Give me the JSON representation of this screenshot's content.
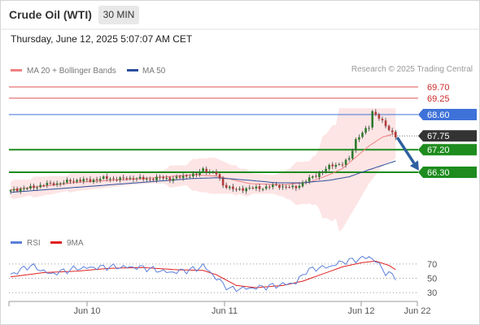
{
  "header": {
    "title": "Crude Oil (WTI)",
    "timeframe": "30 MIN",
    "datetime": "Thursday, June 12, 2025 5:07:07 AM CET"
  },
  "copyright": "Research © 2025 Trading Central",
  "colors": {
    "resistance": "#e05050",
    "pivot": "#3f72d9",
    "support": "#1e8c1e",
    "last_price": "#333333",
    "ma20": "#f08080",
    "ma50": "#2b4f9e",
    "bollinger_fill": "#fde0e0",
    "arrow": "#2f5f9f",
    "rsi": "#5b7fd9",
    "rsi_ma": "#e02020",
    "candle_up": "#2d7a2d",
    "candle_down": "#b03a3a"
  },
  "chart_data": [
    {
      "type": "candlestick",
      "legend": [
        {
          "name": "MA 20 + Bollinger Bands",
          "color": "#f08080"
        },
        {
          "name": "MA 50",
          "color": "#2b4f9e"
        }
      ],
      "x_ticks": [
        "Jun 10",
        "Jun 11",
        "Jun 12",
        "Jun 22"
      ],
      "y_range": [
        65.4,
        69.95
      ],
      "levels": [
        {
          "label": "69.70",
          "value": 69.7,
          "kind": "resistance"
        },
        {
          "label": "69.25",
          "value": 69.25,
          "kind": "resistance"
        },
        {
          "label": "68.60",
          "value": 68.6,
          "kind": "pivot"
        },
        {
          "label": "67.75",
          "value": 67.75,
          "kind": "last"
        },
        {
          "label": "67.20",
          "value": 67.2,
          "kind": "support"
        },
        {
          "label": "66.30",
          "value": 66.3,
          "kind": "support"
        }
      ],
      "close_anchors": [
        [
          0,
          65.55
        ],
        [
          8,
          65.75
        ],
        [
          18,
          65.95
        ],
        [
          30,
          66.05
        ],
        [
          40,
          66.05
        ],
        [
          48,
          66.05
        ],
        [
          56,
          66.2
        ],
        [
          58,
          66.45
        ],
        [
          62,
          66.2
        ],
        [
          64,
          65.8
        ],
        [
          68,
          65.6
        ],
        [
          72,
          65.65
        ],
        [
          80,
          65.75
        ],
        [
          86,
          65.7
        ],
        [
          89,
          65.95
        ],
        [
          92,
          66.2
        ],
        [
          94,
          66.35
        ],
        [
          96,
          66.5
        ],
        [
          98,
          66.6
        ],
        [
          100,
          66.65
        ],
        [
          102,
          66.85
        ],
        [
          103,
          67.2
        ],
        [
          104,
          67.6
        ],
        [
          106,
          67.85
        ],
        [
          108,
          68.1
        ],
        [
          109,
          68.75
        ],
        [
          111,
          68.5
        ],
        [
          113,
          68.1
        ],
        [
          116,
          67.75
        ]
      ],
      "ma20_anchors": [
        [
          0,
          65.6
        ],
        [
          20,
          65.9
        ],
        [
          40,
          66.05
        ],
        [
          55,
          66.2
        ],
        [
          62,
          66.15
        ],
        [
          72,
          65.85
        ],
        [
          82,
          65.8
        ],
        [
          90,
          65.9
        ],
        [
          96,
          66.2
        ],
        [
          100,
          66.45
        ],
        [
          104,
          66.9
        ],
        [
          108,
          67.35
        ],
        [
          112,
          67.7
        ],
        [
          116,
          67.85
        ]
      ],
      "ma50_anchors": [
        [
          0,
          65.5
        ],
        [
          20,
          65.7
        ],
        [
          40,
          65.9
        ],
        [
          55,
          66.05
        ],
        [
          62,
          66.08
        ],
        [
          72,
          65.98
        ],
        [
          80,
          65.88
        ],
        [
          88,
          65.88
        ],
        [
          96,
          65.98
        ],
        [
          102,
          66.12
        ],
        [
          108,
          66.4
        ],
        [
          116,
          66.75
        ]
      ],
      "forecast": {
        "from": [
          116,
          67.75
        ],
        "to": [
          124,
          66.3
        ]
      }
    },
    {
      "type": "line",
      "legend": [
        {
          "name": "RSI",
          "color": "#5b7fd9"
        },
        {
          "name": "9MA",
          "color": "#e02020"
        }
      ],
      "y_ticks": [
        70,
        50,
        30
      ],
      "y_range": [
        20,
        88
      ],
      "rsi_anchors": [
        [
          0,
          55
        ],
        [
          6,
          68
        ],
        [
          12,
          56
        ],
        [
          20,
          64
        ],
        [
          30,
          66
        ],
        [
          40,
          65
        ],
        [
          48,
          58
        ],
        [
          56,
          63
        ],
        [
          58,
          68
        ],
        [
          62,
          50
        ],
        [
          66,
          35
        ],
        [
          72,
          36
        ],
        [
          80,
          40
        ],
        [
          86,
          44
        ],
        [
          89,
          60
        ],
        [
          92,
          64
        ],
        [
          96,
          66
        ],
        [
          100,
          73
        ],
        [
          104,
          76
        ],
        [
          108,
          80
        ],
        [
          110,
          74
        ],
        [
          113,
          58
        ],
        [
          116,
          52
        ]
      ],
      "rsi_ma_anchors": [
        [
          0,
          52
        ],
        [
          10,
          58
        ],
        [
          20,
          60
        ],
        [
          30,
          64
        ],
        [
          40,
          65
        ],
        [
          50,
          62
        ],
        [
          58,
          61
        ],
        [
          62,
          55
        ],
        [
          68,
          40
        ],
        [
          74,
          37
        ],
        [
          82,
          40
        ],
        [
          88,
          46
        ],
        [
          94,
          56
        ],
        [
          100,
          66
        ],
        [
          106,
          72
        ],
        [
          110,
          74
        ],
        [
          114,
          68
        ],
        [
          116,
          62
        ]
      ]
    }
  ]
}
